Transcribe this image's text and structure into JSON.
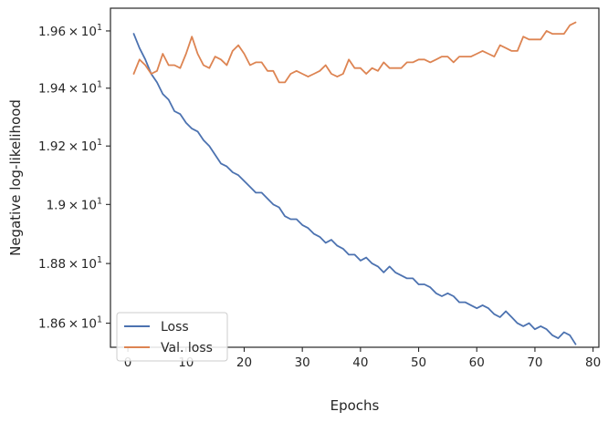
{
  "chart_data": {
    "type": "line",
    "title": "",
    "xlabel": "Epochs",
    "ylabel": "Negative log-likelihood",
    "xlim": [
      -3,
      81
    ],
    "ylim": [
      18.52,
      19.68
    ],
    "yscale": "log",
    "grid": false,
    "legend_position": "lower-left",
    "x_ticks": [
      0,
      10,
      20,
      30,
      40,
      50,
      60,
      70,
      80
    ],
    "y_ticks": [
      {
        "value": 18.6,
        "mantissa": "1.86",
        "base": "10",
        "exp": "1"
      },
      {
        "value": 18.8,
        "mantissa": "1.88",
        "base": "10",
        "exp": "1"
      },
      {
        "value": 19.0,
        "mantissa": "1.9",
        "base": "10",
        "exp": "1"
      },
      {
        "value": 19.2,
        "mantissa": "1.92",
        "base": "10",
        "exp": "1"
      },
      {
        "value": 19.4,
        "mantissa": "1.94",
        "base": "10",
        "exp": "1"
      },
      {
        "value": 19.6,
        "mantissa": "1.96",
        "base": "10",
        "exp": "1"
      }
    ],
    "x": [
      1,
      2,
      3,
      4,
      5,
      6,
      7,
      8,
      9,
      10,
      11,
      12,
      13,
      14,
      15,
      16,
      17,
      18,
      19,
      20,
      21,
      22,
      23,
      24,
      25,
      26,
      27,
      28,
      29,
      30,
      31,
      32,
      33,
      34,
      35,
      36,
      37,
      38,
      39,
      40,
      41,
      42,
      43,
      44,
      45,
      46,
      47,
      48,
      49,
      50,
      51,
      52,
      53,
      54,
      55,
      56,
      57,
      58,
      59,
      60,
      61,
      62,
      63,
      64,
      65,
      66,
      67,
      68,
      69,
      70,
      71,
      72,
      73,
      74,
      75,
      76,
      77
    ],
    "series": [
      {
        "name": "Loss",
        "color": "#4c72b0",
        "values": [
          19.59,
          19.54,
          19.5,
          19.45,
          19.42,
          19.38,
          19.36,
          19.32,
          19.31,
          19.28,
          19.26,
          19.25,
          19.22,
          19.2,
          19.17,
          19.14,
          19.13,
          19.11,
          19.1,
          19.08,
          19.06,
          19.04,
          19.04,
          19.02,
          19.0,
          18.99,
          18.96,
          18.95,
          18.95,
          18.93,
          18.92,
          18.9,
          18.89,
          18.87,
          18.88,
          18.86,
          18.85,
          18.83,
          18.83,
          18.81,
          18.82,
          18.8,
          18.79,
          18.77,
          18.79,
          18.77,
          18.76,
          18.75,
          18.75,
          18.73,
          18.73,
          18.72,
          18.7,
          18.69,
          18.7,
          18.69,
          18.67,
          18.67,
          18.66,
          18.65,
          18.66,
          18.65,
          18.63,
          18.62,
          18.64,
          18.62,
          18.6,
          18.59,
          18.6,
          18.58,
          18.59,
          18.58,
          18.56,
          18.55,
          18.57,
          18.56,
          18.53
        ]
      },
      {
        "name": "Val. loss",
        "color": "#dd8452",
        "values": [
          19.45,
          19.5,
          19.48,
          19.45,
          19.46,
          19.52,
          19.48,
          19.48,
          19.47,
          19.52,
          19.58,
          19.52,
          19.48,
          19.47,
          19.51,
          19.5,
          19.48,
          19.53,
          19.55,
          19.52,
          19.48,
          19.49,
          19.49,
          19.46,
          19.46,
          19.42,
          19.42,
          19.45,
          19.46,
          19.45,
          19.44,
          19.45,
          19.46,
          19.48,
          19.45,
          19.44,
          19.45,
          19.5,
          19.47,
          19.47,
          19.45,
          19.47,
          19.46,
          19.49,
          19.47,
          19.47,
          19.47,
          19.49,
          19.49,
          19.5,
          19.5,
          19.49,
          19.5,
          19.51,
          19.51,
          19.49,
          19.51,
          19.51,
          19.51,
          19.52,
          19.53,
          19.52,
          19.51,
          19.55,
          19.54,
          19.53,
          19.53,
          19.58,
          19.57,
          19.57,
          19.57,
          19.6,
          19.59,
          19.59,
          19.59,
          19.62,
          19.63
        ]
      }
    ]
  }
}
